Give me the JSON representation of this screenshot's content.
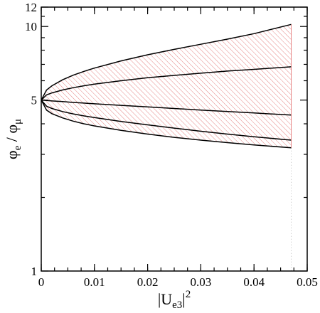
{
  "chart_data": {
    "type": "area",
    "title": "",
    "xlabel_base": "|U",
    "xlabel_sub": "e3",
    "xlabel_end": "|",
    "xlabel_sup": "2",
    "ylabel_base": "φ",
    "ylabel_sub1": "e",
    "ylabel_mid": " / φ",
    "ylabel_sub2": "μ",
    "xlim": [
      0,
      0.05
    ],
    "ylim": [
      1,
      12
    ],
    "y_scale": "log",
    "grid": false,
    "x_ticks": [
      {
        "value": 0,
        "label": "0"
      },
      {
        "value": 0.01,
        "label": "0.01"
      },
      {
        "value": 0.02,
        "label": "0.02"
      },
      {
        "value": 0.03,
        "label": "0.03"
      },
      {
        "value": 0.04,
        "label": "0.04"
      },
      {
        "value": 0.05,
        "label": "0.05"
      }
    ],
    "x_minor_step": 0.0025,
    "y_ticks": [
      {
        "value": 1,
        "label": "1"
      },
      {
        "value": 5,
        "label": "5"
      },
      {
        "value": 10,
        "label": "10"
      },
      {
        "value": 12,
        "label": "12"
      }
    ],
    "y_minor_ticks": [
      2,
      3,
      4,
      6,
      7,
      8,
      9,
      11
    ],
    "band": {
      "fill_pattern": "hatch",
      "hatch_color": "#e06666",
      "x_end": 0.047,
      "upper_curve": 0,
      "lower_curve": 4
    },
    "series": [
      {
        "x": [
          0,
          0.001,
          0.002,
          0.004,
          0.006,
          0.008,
          0.01,
          0.015,
          0.02,
          0.025,
          0.03,
          0.035,
          0.04,
          0.047
        ],
        "values": [
          5.0,
          5.5,
          5.72,
          6.05,
          6.32,
          6.55,
          6.76,
          7.23,
          7.66,
          8.06,
          8.46,
          8.88,
          9.35,
          10.2
        ]
      },
      {
        "x": [
          0,
          0.001,
          0.002,
          0.004,
          0.006,
          0.008,
          0.01,
          0.015,
          0.02,
          0.025,
          0.03,
          0.035,
          0.04,
          0.047
        ],
        "values": [
          5.0,
          5.25,
          5.35,
          5.5,
          5.62,
          5.72,
          5.81,
          6.0,
          6.17,
          6.31,
          6.44,
          6.57,
          6.68,
          6.84
        ]
      },
      {
        "x": [
          0,
          0.001,
          0.002,
          0.004,
          0.006,
          0.008,
          0.01,
          0.015,
          0.02,
          0.025,
          0.03,
          0.035,
          0.04,
          0.047
        ],
        "values": [
          5.0,
          4.98,
          4.96,
          4.93,
          4.89,
          4.86,
          4.83,
          4.76,
          4.69,
          4.62,
          4.55,
          4.49,
          4.43,
          4.34
        ]
      },
      {
        "x": [
          0,
          0.001,
          0.002,
          0.004,
          0.006,
          0.008,
          0.01,
          0.015,
          0.02,
          0.025,
          0.03,
          0.035,
          0.04,
          0.047
        ],
        "values": [
          5.0,
          4.72,
          4.62,
          4.49,
          4.39,
          4.31,
          4.24,
          4.09,
          3.96,
          3.84,
          3.73,
          3.63,
          3.54,
          3.43
        ]
      },
      {
        "x": [
          0,
          0.001,
          0.002,
          0.004,
          0.006,
          0.008,
          0.01,
          0.015,
          0.02,
          0.025,
          0.03,
          0.035,
          0.04,
          0.047
        ],
        "values": [
          5.0,
          4.55,
          4.4,
          4.23,
          4.1,
          4.0,
          3.92,
          3.76,
          3.63,
          3.52,
          3.43,
          3.35,
          3.28,
          3.19
        ]
      }
    ],
    "colors": {
      "axis": "#000000",
      "curve": "#000000",
      "hatch": "#e06666",
      "dotted": "#bbbbbb"
    }
  }
}
